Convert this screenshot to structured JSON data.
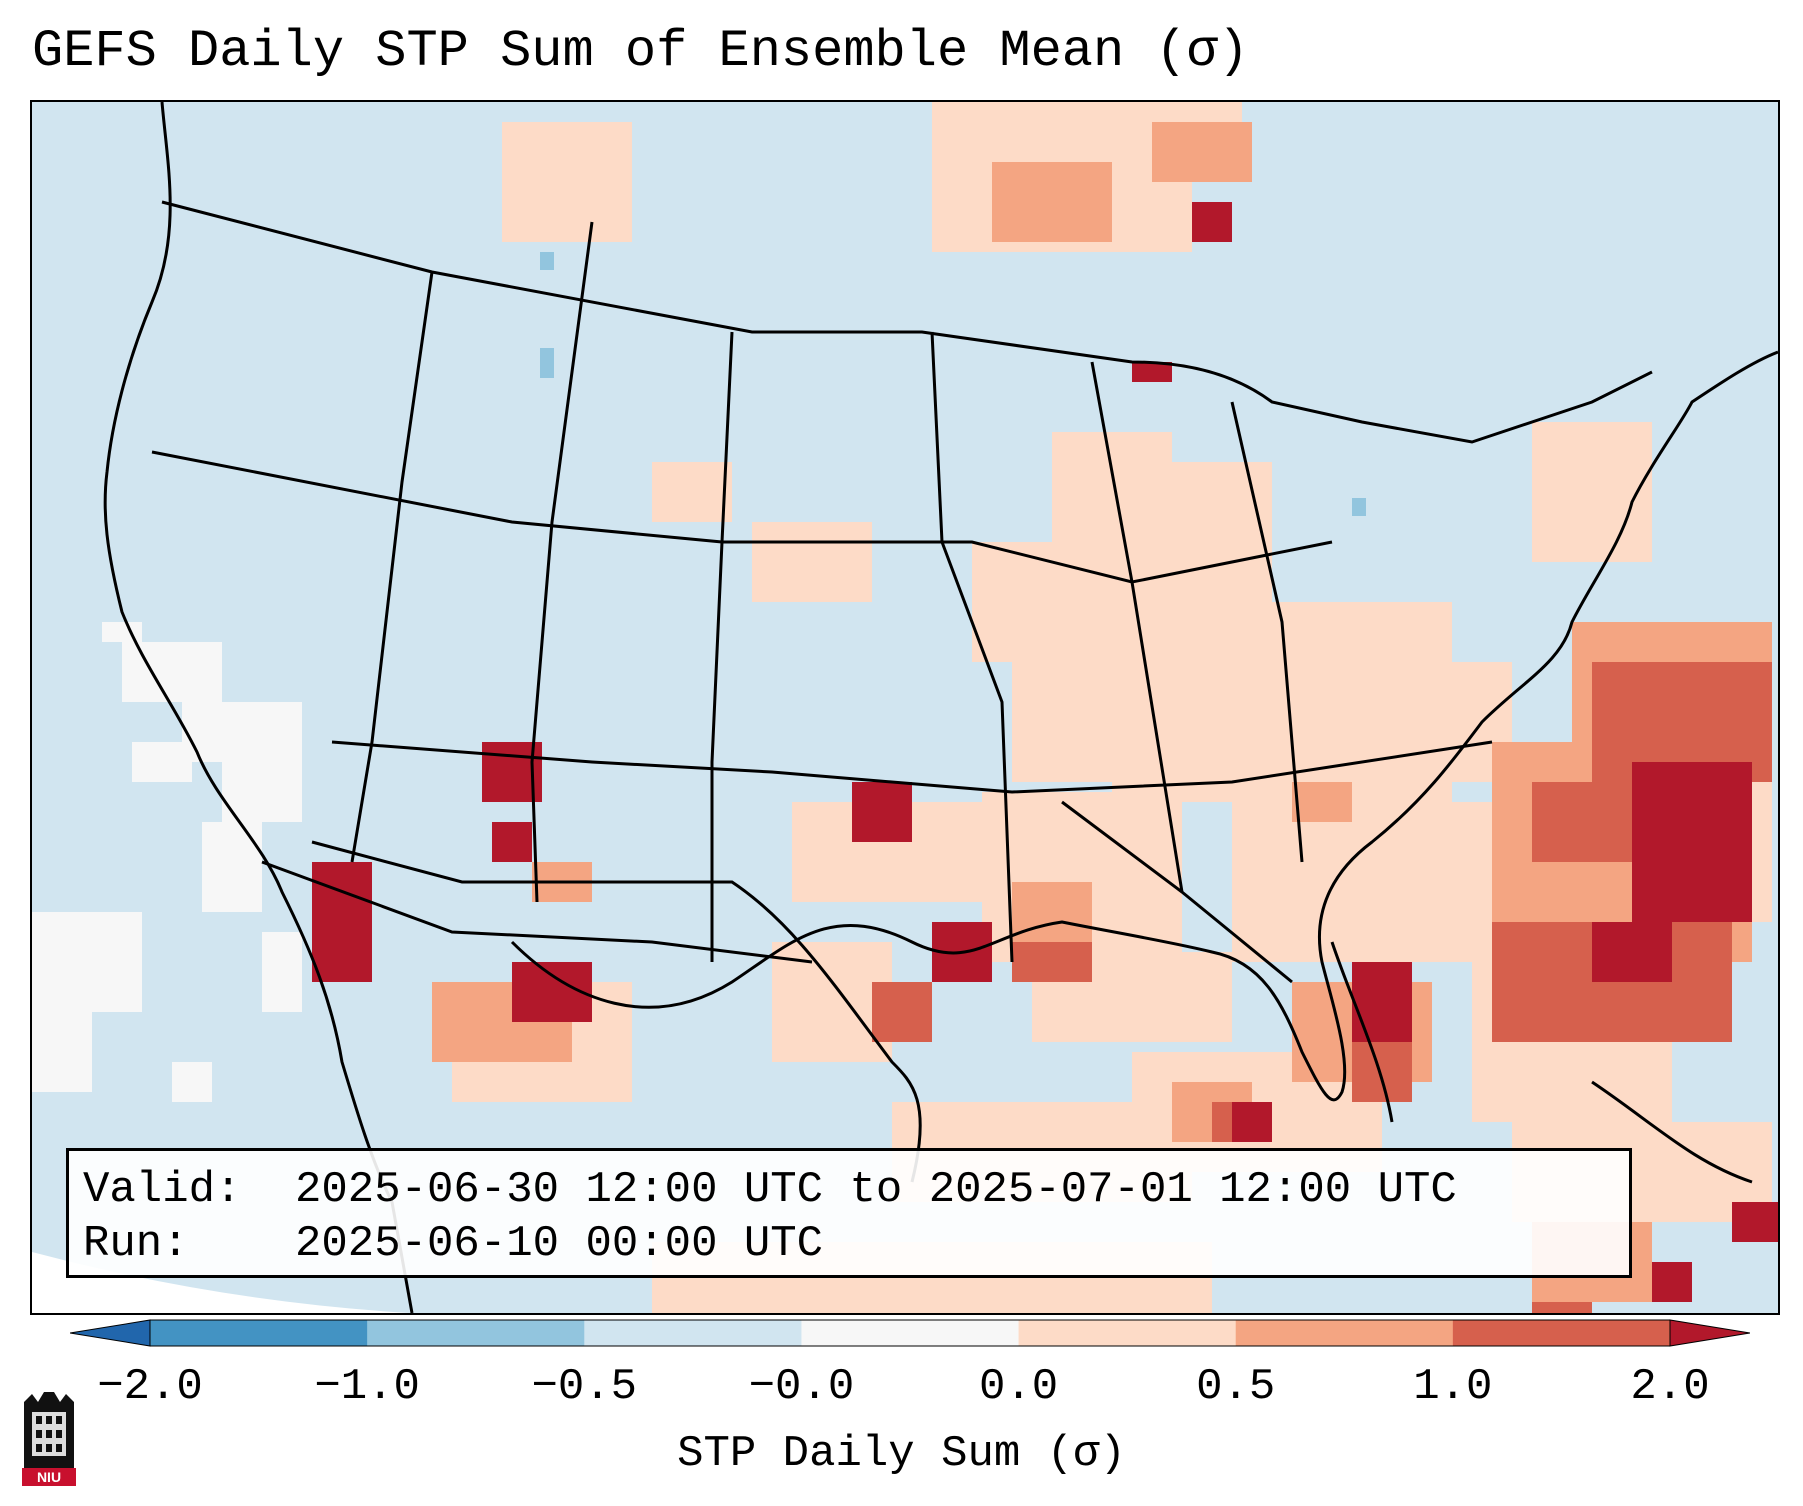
{
  "title": "GEFS Daily STP Sum of Ensemble Mean (σ)",
  "info": {
    "valid_label": "Valid:",
    "valid_value": "2025-06-30 12:00 UTC to 2025-07-01 12:00 UTC",
    "run_label": "Run:",
    "run_value": "2025-06-10 00:00 UTC"
  },
  "colorbar": {
    "label": "STP Daily Sum (σ)",
    "tick_labels": [
      "−2.0",
      "−1.0",
      "−0.5",
      "−0.0",
      "0.0",
      "0.5",
      "1.0",
      "2.0"
    ],
    "bins": [
      {
        "from": "−2.0",
        "to": "−1.0",
        "color": "#4393c3"
      },
      {
        "from": "−1.0",
        "to": "−0.5",
        "color": "#92c5de"
      },
      {
        "from": "−0.5",
        "to": "−0.0",
        "color": "#d1e5f0"
      },
      {
        "from": "−0.0",
        "to": "0.0",
        "color": "#f7f7f7"
      },
      {
        "from": "0.0",
        "to": "0.5",
        "color": "#fddbc7"
      },
      {
        "from": "0.5",
        "to": "1.0",
        "color": "#f4a582"
      },
      {
        "from": "1.0",
        "to": "2.0",
        "color": "#d6604d"
      }
    ],
    "under_color": "#2166ac",
    "over_color": "#b2182b"
  },
  "logo": {
    "text": "NIU",
    "color": "#c8102e"
  },
  "colors": {
    "land_neutral": "#d1e5f0",
    "outside_domain": "#ffffff"
  }
}
